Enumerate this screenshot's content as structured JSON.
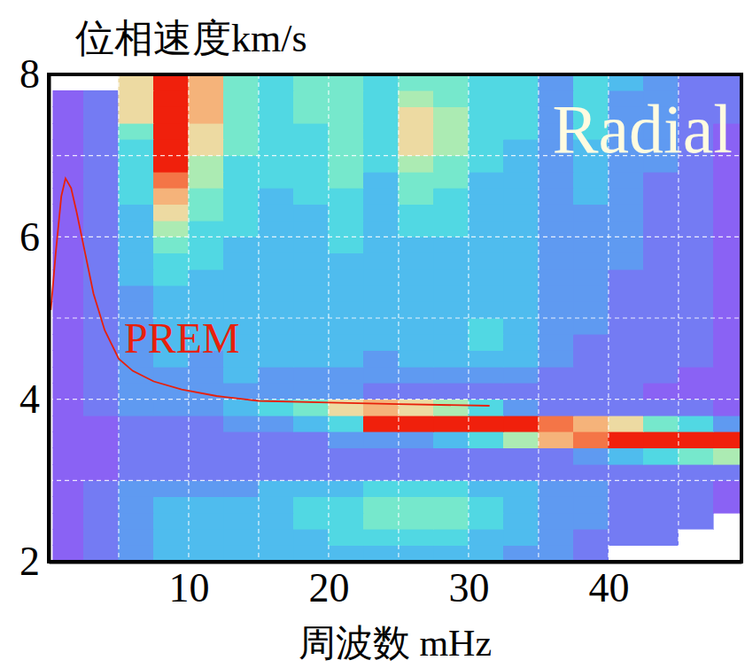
{
  "chart_data": {
    "type": "heatmap",
    "ylabel": "位相速度km/s",
    "xlabel": "周波数 mHz",
    "annotations": [
      "Radial"
    ],
    "grid": true,
    "xlim": [
      0,
      49.5
    ],
    "ylim": [
      2,
      8
    ],
    "xticks": [
      {
        "value": 5,
        "label": null
      },
      10,
      {
        "value": 15,
        "label": null
      },
      20,
      {
        "value": 25,
        "label": null
      },
      30,
      {
        "value": 35,
        "label": null
      },
      40,
      {
        "value": 45,
        "label": null
      }
    ],
    "yticks": [
      2,
      {
        "value": 3,
        "label": null
      },
      4,
      {
        "value": 5,
        "label": null
      },
      6,
      {
        "value": 7,
        "label": null
      },
      8
    ],
    "heatmap": {
      "x_bins": [
        0.3,
        2.5,
        5,
        7.5,
        10,
        12.5,
        15,
        17.5,
        20,
        22.5,
        25,
        27.5,
        30,
        32.5,
        35,
        37.5,
        40,
        42.5,
        45,
        47.5,
        50
      ],
      "y_bins": [
        2.0,
        2.2,
        2.4,
        2.6,
        2.8,
        3.0,
        3.2,
        3.4,
        3.6,
        3.8,
        4.0,
        4.2,
        4.4,
        4.6,
        4.8,
        5.0,
        5.2,
        5.4,
        5.6,
        5.8,
        6.0,
        6.2,
        6.4,
        6.6,
        6.8,
        7.0,
        7.2,
        7.4,
        7.6,
        7.8,
        8.0
      ],
      "zlim": [
        0,
        10
      ],
      "z": [
        [
          0,
          1,
          2,
          3,
          3,
          3,
          3,
          3,
          3,
          3,
          3,
          3,
          3,
          2,
          2,
          1,
          null,
          null,
          null,
          null
        ],
        [
          0,
          1,
          2,
          3,
          3,
          3,
          3,
          3,
          4,
          4,
          4,
          4,
          3,
          3,
          2,
          1,
          1,
          1,
          null,
          null
        ],
        [
          0,
          1,
          2,
          3,
          3,
          3,
          3,
          4,
          4,
          5,
          5,
          5,
          4,
          3,
          2,
          2,
          1,
          1,
          1,
          null
        ],
        [
          0,
          1,
          2,
          3,
          3,
          3,
          3,
          4,
          4,
          5,
          5,
          5,
          4,
          3,
          2,
          2,
          1,
          1,
          1,
          0
        ],
        [
          0,
          1,
          2,
          2,
          2,
          2,
          3,
          3,
          3,
          4,
          4,
          4,
          3,
          3,
          2,
          2,
          1,
          1,
          1,
          0
        ],
        [
          0,
          0,
          1,
          1,
          1,
          1,
          1,
          1,
          1,
          1,
          1,
          1,
          1,
          1,
          1,
          1,
          1,
          1,
          1,
          1
        ],
        [
          0,
          0,
          1,
          1,
          1,
          1,
          1,
          1,
          1,
          1,
          1,
          1,
          1,
          1,
          1,
          2,
          3,
          4,
          5,
          6
        ],
        [
          0,
          0,
          1,
          1,
          1,
          1,
          1,
          1,
          2,
          2,
          2,
          3,
          4,
          6,
          8,
          9,
          10,
          10,
          10,
          10
        ],
        [
          0,
          0,
          1,
          1,
          1,
          2,
          2,
          3,
          4,
          10,
          10,
          10,
          10,
          10,
          9,
          8,
          7,
          5,
          4,
          2
        ],
        [
          0,
          1,
          2,
          2,
          2,
          3,
          4,
          5,
          7,
          8,
          7,
          6,
          4,
          2,
          1,
          1,
          1,
          1,
          1,
          0
        ],
        [
          0,
          1,
          2,
          2,
          2,
          2,
          2,
          2,
          2,
          1,
          1,
          1,
          1,
          1,
          1,
          1,
          1,
          0,
          0,
          0
        ],
        [
          0,
          1,
          2,
          2,
          2,
          3,
          2,
          2,
          2,
          2,
          2,
          2,
          2,
          2,
          1,
          1,
          1,
          1,
          0,
          0
        ],
        [
          0,
          1,
          2,
          3,
          2,
          3,
          3,
          3,
          3,
          2,
          3,
          3,
          3,
          3,
          2,
          1,
          1,
          1,
          1,
          0
        ],
        [
          0,
          1,
          2,
          3,
          3,
          3,
          3,
          3,
          3,
          3,
          3,
          3,
          4,
          3,
          2,
          1,
          1,
          1,
          1,
          0
        ],
        [
          0,
          1,
          2,
          3,
          3,
          3,
          3,
          3,
          3,
          3,
          3,
          3,
          4,
          3,
          2,
          2,
          1,
          1,
          1,
          0
        ],
        [
          0,
          1,
          2,
          3,
          3,
          3,
          3,
          3,
          3,
          3,
          3,
          3,
          3,
          3,
          2,
          2,
          1,
          1,
          1,
          0
        ],
        [
          0,
          1,
          2,
          3,
          3,
          3,
          3,
          3,
          3,
          3,
          3,
          3,
          3,
          3,
          2,
          2,
          1,
          1,
          1,
          0
        ],
        [
          0,
          1,
          3,
          4,
          3,
          3,
          3,
          3,
          3,
          3,
          3,
          3,
          3,
          3,
          2,
          2,
          1,
          1,
          1,
          0
        ],
        [
          0,
          1,
          3,
          4,
          4,
          3,
          3,
          3,
          3,
          3,
          3,
          3,
          3,
          3,
          2,
          2,
          2,
          1,
          1,
          0
        ],
        [
          0,
          1,
          3,
          5,
          4,
          3,
          3,
          3,
          4,
          3,
          3,
          3,
          3,
          3,
          2,
          2,
          2,
          1,
          1,
          0
        ],
        [
          0,
          1,
          3,
          6,
          4,
          4,
          3,
          3,
          4,
          3,
          4,
          4,
          3,
          3,
          2,
          2,
          2,
          1,
          1,
          0
        ],
        [
          0,
          1,
          3,
          7,
          5,
          4,
          3,
          3,
          4,
          3,
          4,
          4,
          3,
          3,
          2,
          2,
          2,
          1,
          1,
          0
        ],
        [
          0,
          1,
          4,
          8,
          5,
          4,
          3,
          4,
          4,
          3,
          5,
          4,
          3,
          3,
          2,
          3,
          2,
          1,
          1,
          0
        ],
        [
          0,
          1,
          4,
          9,
          6,
          4,
          4,
          4,
          5,
          3,
          5,
          5,
          3,
          3,
          2,
          3,
          2,
          1,
          1,
          0
        ],
        [
          0,
          1,
          4,
          10,
          6,
          4,
          4,
          4,
          5,
          4,
          6,
          5,
          4,
          3,
          2,
          3,
          2,
          2,
          1,
          0
        ],
        [
          0,
          1,
          4,
          10,
          7,
          5,
          4,
          4,
          5,
          4,
          7,
          6,
          4,
          3,
          2,
          3,
          2,
          2,
          1,
          0
        ],
        [
          0,
          1,
          5,
          10,
          7,
          5,
          4,
          4,
          5,
          4,
          7,
          6,
          4,
          4,
          2,
          4,
          2,
          2,
          1,
          0
        ],
        [
          0,
          1,
          7,
          10,
          8,
          5,
          4,
          5,
          5,
          4,
          7,
          6,
          4,
          4,
          2,
          4,
          2,
          2,
          1,
          1
        ],
        [
          0,
          1,
          7,
          10,
          8,
          5,
          4,
          5,
          5,
          4,
          6,
          5,
          4,
          4,
          2,
          4,
          2,
          2,
          1,
          1
        ],
        [
          null,
          null,
          7,
          10,
          8,
          5,
          4,
          5,
          5,
          4,
          5,
          5,
          4,
          4,
          2,
          4,
          3,
          2,
          1,
          1
        ]
      ]
    },
    "series": [
      {
        "name": "PREM",
        "color": "#e8200a",
        "type": "line",
        "x": [
          0.15,
          0.5,
          0.9,
          1.2,
          1.6,
          2.0,
          2.6,
          3.2,
          4.0,
          5.0,
          6.0,
          7.5,
          9.5,
          12,
          15,
          20,
          25,
          31.5
        ],
        "values": [
          5.1,
          5.8,
          6.5,
          6.72,
          6.6,
          6.3,
          5.8,
          5.3,
          4.85,
          4.5,
          4.35,
          4.22,
          4.12,
          4.04,
          3.98,
          3.96,
          3.94,
          3.92
        ]
      }
    ]
  }
}
